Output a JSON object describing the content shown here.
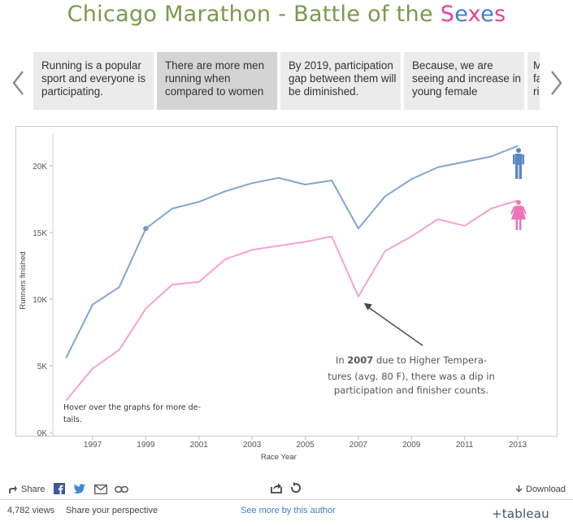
{
  "title": {
    "prefix": "Chicago Marathon - Battle of the ",
    "suffix_letters": [
      "S",
      "e",
      "x",
      "e",
      "s"
    ]
  },
  "story_points": [
    {
      "text": "Running is a popular sport and everyone is participating.",
      "active": false
    },
    {
      "text": "There are more men running when compared to women",
      "active": true
    },
    {
      "text": "By 2019, participation gap between them will be diminished.",
      "active": false
    },
    {
      "text": "Because, we are seeing and increase in young female",
      "active": false
    },
    {
      "text": "M fa ri",
      "active": false
    }
  ],
  "colors": {
    "men": "#7ea6d2",
    "women": "#f4a3d3",
    "title_green": "#7a9a4a"
  },
  "chart_data": {
    "type": "line",
    "x": [
      1996,
      1997,
      1998,
      1999,
      2000,
      2001,
      2002,
      2003,
      2004,
      2005,
      2006,
      2007,
      2008,
      2009,
      2010,
      2011,
      2012,
      2013
    ],
    "x_ticks": [
      1997,
      1999,
      2001,
      2003,
      2005,
      2007,
      2009,
      2011,
      2013
    ],
    "y_ticks": [
      0,
      5000,
      10000,
      15000,
      20000
    ],
    "y_tick_labels": [
      "0K",
      "5K",
      "10K",
      "15K",
      "20K"
    ],
    "ylim": [
      0,
      22000
    ],
    "xlabel": "Race Year",
    "ylabel": "Runners finished",
    "series": [
      {
        "key": "men",
        "icon": "male-figure-icon",
        "values": [
          5600,
          9600,
          10900,
          15300,
          16800,
          17300,
          18100,
          18700,
          19100,
          18600,
          18900,
          15300,
          17700,
          19000,
          19900,
          20300,
          20700,
          21500
        ]
      },
      {
        "key": "women",
        "icon": "female-figure-icon",
        "values": [
          2400,
          4800,
          6200,
          9300,
          11100,
          11300,
          13000,
          13700,
          14000,
          14300,
          14700,
          10200,
          13600,
          14700,
          16000,
          15500,
          16800,
          17400
        ]
      }
    ],
    "highlight_point": {
      "x": 1999,
      "y": 15300
    },
    "annotation": {
      "lines": [
        [
          "In ",
          "2007",
          " due to Higher Tempera-"
        ],
        [
          "tures (avg. 80 F), there was a dip in"
        ],
        [
          "participation and finisher counts."
        ]
      ],
      "target": {
        "x": 2007,
        "y": 10200
      }
    },
    "hint": [
      "Hover over the graphs for more de-",
      "tails."
    ]
  },
  "footer": {
    "share": "Share",
    "views": "4,782 views",
    "perspective": "Share your perspective",
    "see_more": "See more by this author",
    "download": "Download",
    "brand": "+tableau"
  }
}
